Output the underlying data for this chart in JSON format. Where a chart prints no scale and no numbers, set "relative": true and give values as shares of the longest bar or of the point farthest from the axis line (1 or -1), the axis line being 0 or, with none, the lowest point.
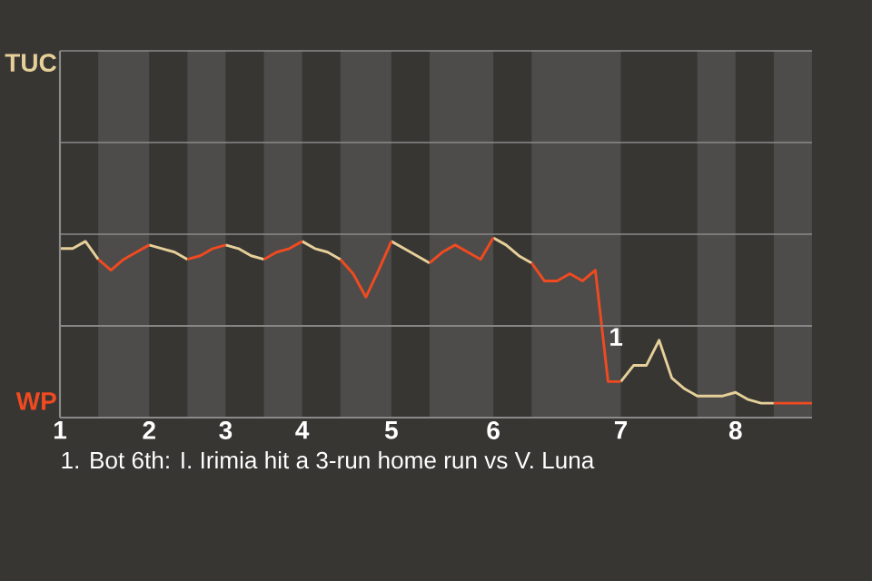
{
  "chart_data": {
    "type": "line",
    "relative": true,
    "categories": [
      "1",
      null,
      null,
      null,
      null,
      null,
      null,
      "2",
      null,
      null,
      null,
      null,
      null,
      "3",
      null,
      null,
      null,
      null,
      null,
      "4",
      null,
      null,
      null,
      null,
      null,
      null,
      "5",
      null,
      null,
      null,
      null,
      null,
      null,
      null,
      "6",
      null,
      null,
      null,
      null,
      null,
      null,
      null,
      null,
      null,
      "7",
      null,
      null,
      null,
      null,
      null,
      null,
      null,
      null,
      "8",
      null,
      null,
      null,
      null,
      null,
      null
    ],
    "grid": "y",
    "ref_lines": [
      {
        "axis": "y",
        "value": 0.51,
        "color": "#8a8a8a"
      }
    ],
    "series": [
      {
        "color": "#e6d09a",
        "values": [
          0.94,
          0.94,
          0.98,
          0.88,
          null,
          null,
          null,
          0.96,
          0.94,
          0.92,
          0.88,
          null,
          null,
          0.96,
          0.94,
          0.9,
          0.88,
          null,
          null,
          0.98,
          0.94,
          0.92,
          0.88,
          null,
          null,
          null,
          0.98,
          0.94,
          0.9,
          0.86,
          null,
          null,
          null,
          null,
          1,
          0.96,
          0.9,
          0.86,
          null,
          null,
          null,
          null,
          null,
          null,
          0.2,
          0.29,
          0.29,
          0.43,
          0.22,
          0.16,
          0.12,
          0.12,
          0.12,
          0.14,
          0.1,
          0.08,
          0.08,
          null,
          null,
          null
        ]
      },
      {
        "color": "#f04a20",
        "values": [
          null,
          null,
          null,
          0.88,
          0.82,
          0.88,
          0.92,
          0.96,
          null,
          null,
          0.88,
          0.9,
          0.94,
          0.96,
          null,
          null,
          0.88,
          0.92,
          0.94,
          0.98,
          null,
          null,
          0.88,
          0.8,
          0.67,
          0.82,
          0.98,
          null,
          null,
          0.86,
          0.92,
          0.96,
          0.92,
          0.88,
          1,
          null,
          null,
          0.86,
          0.76,
          0.76,
          0.8,
          0.76,
          0.82,
          0.2,
          0.2,
          null,
          null,
          null,
          null,
          null,
          null,
          null,
          null,
          null,
          null,
          null,
          0.08,
          0.08,
          0.08,
          0.08
        ]
      }
    ],
    "annotations": [
      "TUC",
      "WP",
      "1",
      "1. Bot 6th: I. Irimia hit a 3-run home run vs V. Luna"
    ]
  }
}
